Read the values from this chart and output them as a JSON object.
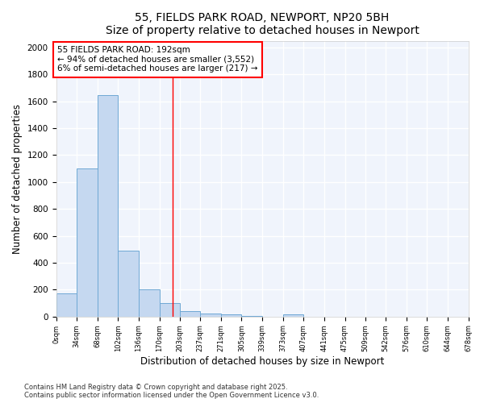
{
  "title": "55, FIELDS PARK ROAD, NEWPORT, NP20 5BH",
  "subtitle": "Size of property relative to detached houses in Newport",
  "xlabel": "Distribution of detached houses by size in Newport",
  "ylabel": "Number of detached properties",
  "bar_color": "#c5d8f0",
  "bar_edge_color": "#6fa8d4",
  "background_color": "#ffffff",
  "plot_bg_color": "#f0f4fc",
  "grid_color": "#ffffff",
  "annotation_text": "55 FIELDS PARK ROAD: 192sqm\n← 94% of detached houses are smaller (3,552)\n6% of semi-detached houses are larger (217) →",
  "vline_x": 192,
  "vline_color": "red",
  "bin_edges": [
    0,
    34,
    68,
    102,
    136,
    170,
    203,
    237,
    271,
    305,
    339,
    373,
    407,
    441,
    475,
    509,
    542,
    576,
    610,
    644,
    678
  ],
  "bar_heights": [
    175,
    1100,
    1645,
    490,
    200,
    100,
    40,
    25,
    15,
    5,
    0,
    15,
    0,
    0,
    0,
    0,
    0,
    0,
    0,
    0
  ],
  "ylim": [
    0,
    2050
  ],
  "yticks": [
    0,
    200,
    400,
    600,
    800,
    1000,
    1200,
    1400,
    1600,
    1800,
    2000
  ],
  "footer_text": "Contains HM Land Registry data © Crown copyright and database right 2025.\nContains public sector information licensed under the Open Government Licence v3.0.",
  "tick_labels": [
    "0sqm",
    "34sqm",
    "68sqm",
    "102sqm",
    "136sqm",
    "170sqm",
    "203sqm",
    "237sqm",
    "271sqm",
    "305sqm",
    "339sqm",
    "373sqm",
    "407sqm",
    "441sqm",
    "475sqm",
    "509sqm",
    "542sqm",
    "576sqm",
    "610sqm",
    "644sqm",
    "678sqm"
  ]
}
